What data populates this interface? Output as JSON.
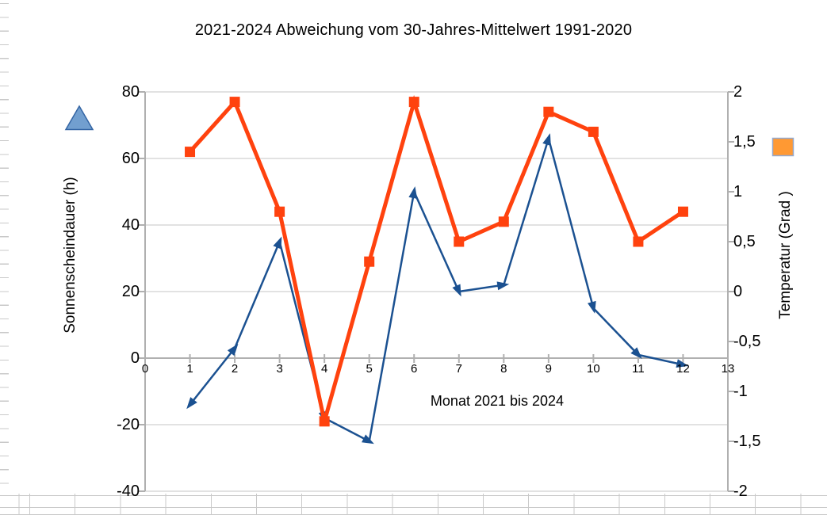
{
  "chart_data": {
    "type": "line",
    "title": "2021-2024 Abweichung vom 30-Jahres-Mittelwert 1991-2020",
    "xlabel": "Monat 2021 bis 2024",
    "x": [
      1,
      2,
      3,
      4,
      5,
      6,
      7,
      8,
      9,
      10,
      11,
      12
    ],
    "x_axis": {
      "min": 0,
      "max": 13,
      "tick_labels": [
        "0",
        "1",
        "2",
        "3",
        "4",
        "5",
        "6",
        "7",
        "8",
        "9",
        "10",
        "11",
        "12",
        "13"
      ]
    },
    "left_axis": {
      "title": "Sonnenscheindauer (h)",
      "min": -40,
      "max": 80,
      "step": 20,
      "tick_labels": [
        "80",
        "60",
        "40",
        "20",
        "0",
        "-20",
        "-40"
      ]
    },
    "right_axis": {
      "title": "Temperatur (Grad )",
      "min": -2,
      "max": 2,
      "step": 0.5,
      "tick_labels": [
        "2",
        "1,5",
        "1",
        "0,5",
        "0",
        "-0,5",
        "-1",
        "-1,5",
        "-2"
      ]
    },
    "series": [
      {
        "name": "Sonnenscheindauer (h)",
        "axis": "left",
        "marker": "arrow",
        "color": "#1b5191",
        "values": [
          -14,
          3,
          35,
          -18,
          -25,
          50,
          20,
          22,
          66,
          15,
          1,
          -2
        ]
      },
      {
        "name": "Temperatur (Grad )",
        "axis": "right",
        "marker": "square",
        "color": "#ff420e",
        "values": [
          1.4,
          1.9,
          0.8,
          -1.3,
          0.3,
          1.9,
          0.5,
          0.7,
          1.8,
          1.6,
          0.5,
          0.8
        ]
      }
    ],
    "grid": "horizontal",
    "legend_position": "none",
    "colors": {
      "gridline": "#d9d9d9",
      "axis_line": "#b0b0b0",
      "text": "#000000"
    }
  },
  "legend_shapes": {
    "triangle_fill": "#729fcf",
    "triangle_border": "#3465a4",
    "square_fill": "#ff9933",
    "square_border": "#94a9cf"
  }
}
